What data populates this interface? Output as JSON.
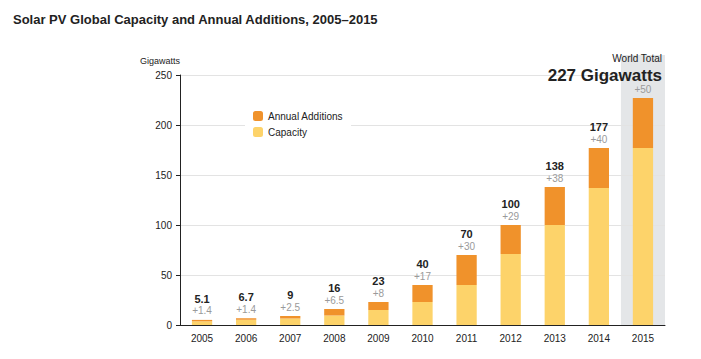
{
  "chart_data": {
    "type": "bar",
    "title": "Solar PV Global Capacity and Annual Additions, 2005–2015",
    "y_label": "Gigawatts",
    "categories": [
      "2005",
      "2006",
      "2007",
      "2008",
      "2009",
      "2010",
      "2011",
      "2012",
      "2013",
      "2014",
      "2015"
    ],
    "series": [
      {
        "name": "Capacity",
        "color": "#fdd36a",
        "values": [
          3.7,
          5.3,
          6.5,
          9.5,
          15,
          23,
          40,
          71,
          100,
          137,
          177
        ]
      },
      {
        "name": "Annual Additions",
        "color": "#f0922b",
        "values": [
          1.4,
          1.4,
          2.5,
          6.5,
          8,
          17,
          30,
          29,
          38,
          40,
          50
        ],
        "value_labels": [
          "+1.4",
          "+1.4",
          "+2.5",
          "+6.5",
          "+8",
          "+17",
          "+30",
          "+29",
          "+38",
          "+40",
          "+50"
        ]
      }
    ],
    "totals": [
      5.1,
      6.7,
      9,
      16,
      23,
      40,
      70,
      100,
      138,
      177,
      null
    ],
    "annotations": [
      "World Total",
      "227 Gigawatts"
    ],
    "ylim": [
      0,
      250
    ],
    "yticks": [
      0,
      50,
      100,
      150,
      200,
      250
    ],
    "stacked": true,
    "data_labels": true,
    "grid": true,
    "legend": "upper left"
  }
}
